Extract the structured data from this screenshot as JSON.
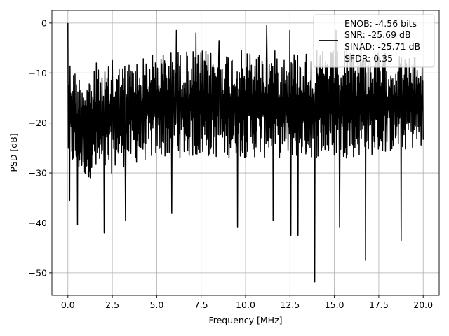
{
  "chart_data": {
    "type": "line",
    "title": "",
    "xlabel": "Frequency [MHz]",
    "ylabel": "PSD [dB]",
    "xlim": [
      -0.9,
      20.9
    ],
    "ylim": [
      -54.5,
      2.5
    ],
    "xticks": [
      0.0,
      2.5,
      5.0,
      7.5,
      10.0,
      12.5,
      15.0,
      17.5,
      20.0
    ],
    "xtick_labels": [
      "0.0",
      "2.5",
      "5.0",
      "7.5",
      "10.0",
      "12.5",
      "15.0",
      "17.5",
      "20.0"
    ],
    "yticks": [
      0,
      -10,
      -20,
      -30,
      -40,
      -50
    ],
    "ytick_labels": [
      "0",
      "−10",
      "−20",
      "−30",
      "−40",
      "−50"
    ],
    "grid": true,
    "legend_position": "top-right",
    "legend_entries": [
      "ENOB: -4.56 bits",
      "SNR: -25.69 dB",
      "SINAD: -25.71 dB",
      "SFDR: 0.35"
    ],
    "series": [
      {
        "color": "#000000",
        "x_range": [
          0,
          20
        ],
        "sample_count": 1000,
        "envelope": {
          "x": [
            0,
            0.5,
            1,
            2,
            3,
            4,
            5,
            6,
            7,
            8,
            9,
            10,
            12,
            14,
            16,
            18,
            20
          ],
          "upper": [
            -6,
            -10,
            -10,
            -9,
            -8,
            -7,
            -6,
            -5.5,
            -5.5,
            -5.5,
            -5.5,
            -5.5,
            -5.5,
            -5.5,
            -5.5,
            -6,
            -7
          ],
          "lower": [
            -28,
            -30,
            -31,
            -31,
            -29,
            -28,
            -27,
            -27,
            -27,
            -27,
            -27,
            -27,
            -27,
            -27,
            -27,
            -26,
            -25
          ]
        },
        "peaks": [
          [
            0.0,
            0.0
          ],
          [
            1.6,
            -8
          ],
          [
            2.5,
            -7.5
          ],
          [
            6.1,
            -1.5
          ],
          [
            7.2,
            -2
          ],
          [
            8.5,
            -3.5
          ],
          [
            11.2,
            -0.5
          ],
          [
            12.5,
            -1.5
          ],
          [
            15.1,
            -1.5
          ],
          [
            16.5,
            -1.5
          ]
        ],
        "dips": [
          [
            0.1,
            -35.5
          ],
          [
            0.55,
            -40.4
          ],
          [
            2.05,
            -42
          ],
          [
            3.25,
            -39.5
          ],
          [
            5.85,
            -38
          ],
          [
            9.55,
            -40.8
          ],
          [
            11.55,
            -39.5
          ],
          [
            12.55,
            -42.5
          ],
          [
            12.95,
            -42.5
          ],
          [
            13.9,
            -51.8
          ],
          [
            15.3,
            -40.8
          ],
          [
            16.75,
            -47.5
          ],
          [
            18.75,
            -43.5
          ]
        ]
      }
    ]
  }
}
